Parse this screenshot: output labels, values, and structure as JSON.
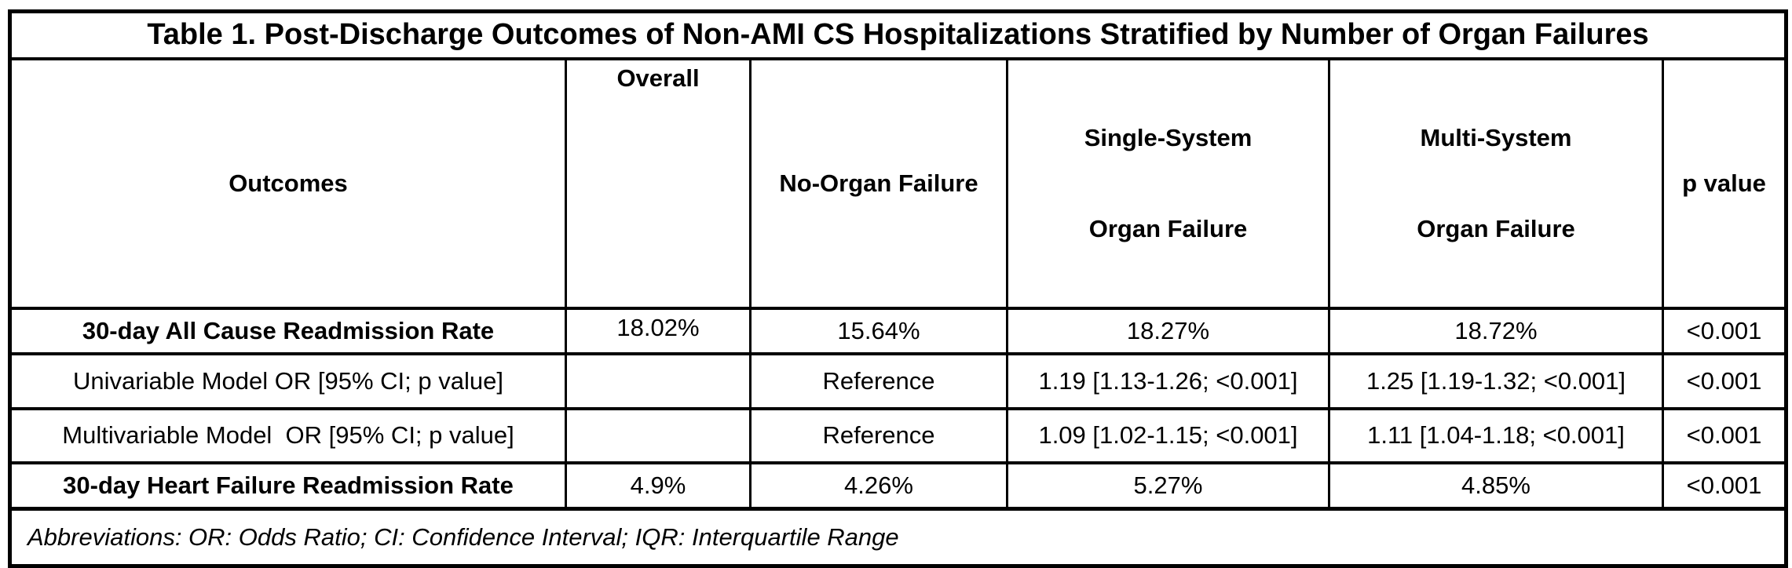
{
  "title": "Table 1. Post-Discharge Outcomes of Non-AMI CS Hospitalizations Stratified by Number of Organ Failures",
  "header": {
    "outcomes": "Outcomes",
    "overall": "Overall",
    "no_organ_failure": "No-Organ Failure",
    "single_system_line1": "Single-System",
    "single_system_line2": "Organ Failure",
    "multi_system_line1": "Multi-System",
    "multi_system_line2": "Organ Failure",
    "p_value": "p value"
  },
  "rows": [
    {
      "cells": [
        "30-day All Cause Readmission Rate",
        "18.02%",
        "15.64%",
        "18.27%",
        "18.72%",
        "<0.001"
      ]
    },
    {
      "cells": [
        "Univariable Model OR [95% CI; p value]",
        "",
        "Reference",
        "1.19 [1.13-1.26; <0.001]",
        "1.25 [1.19-1.32; <0.001]",
        "<0.001"
      ]
    },
    {
      "cells": [
        "Multivariable Model  OR [95% CI; p value]",
        "",
        "Reference",
        "1.09 [1.02-1.15; <0.001]",
        "1.11 [1.04-1.18; <0.001]",
        "<0.001"
      ]
    },
    {
      "cells": [
        "30-day Heart Failure Readmission Rate",
        "4.9%",
        "4.26%",
        "5.27%",
        "4.85%",
        "<0.001"
      ]
    }
  ],
  "footnote": "Abbreviations: OR: Odds Ratio; CI: Confidence Interval; IQR: Interquartile Range",
  "colors": {
    "border": "#000000",
    "text": "#000000",
    "background": "#ffffff"
  }
}
